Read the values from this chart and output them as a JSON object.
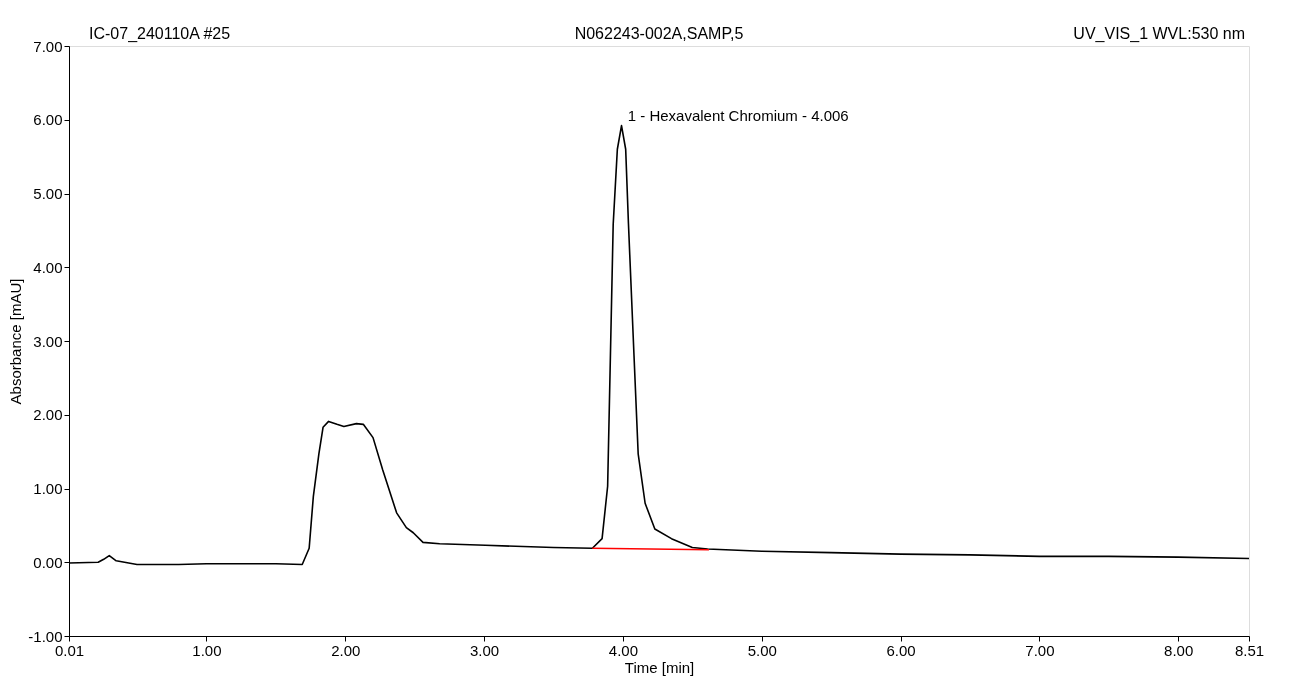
{
  "chart_data": {
    "type": "line",
    "title": "IC-07_240110A #25",
    "subtitle": "N062243-002A,SAMP,5",
    "xlabel": "Time [min]",
    "ylabel": "Absorbance [mAU]",
    "annotations": [
      "UV_VIS_1 WVL:530 nm",
      {
        "text": "1 - Hexavalent Chromium - 4.006",
        "x": 4.006,
        "y": 5.92
      }
    ],
    "series": [
      {
        "color": "#000000",
        "x": [
          0.01,
          0.22,
          0.26,
          0.3,
          0.35,
          0.5,
          0.8,
          1.0,
          1.3,
          1.5,
          1.69,
          1.74,
          1.77,
          1.81,
          1.84,
          1.88,
          1.94,
          1.99,
          2.08,
          2.13,
          2.2,
          2.27,
          2.37,
          2.44,
          2.49,
          2.56,
          2.68,
          3.01,
          3.5,
          3.78,
          3.85,
          3.89,
          3.91,
          3.93,
          3.96,
          3.99,
          4.02,
          4.04,
          4.08,
          4.11,
          4.16,
          4.23,
          4.35,
          4.5,
          4.61,
          5.0,
          5.5,
          6.0,
          6.5,
          7.0,
          7.5,
          8.0,
          8.51
        ],
        "values": [
          -0.01,
          0.0,
          0.04,
          0.09,
          0.02,
          -0.03,
          -0.03,
          -0.02,
          -0.02,
          -0.02,
          -0.03,
          0.19,
          0.89,
          1.47,
          1.83,
          1.91,
          1.87,
          1.84,
          1.88,
          1.87,
          1.69,
          1.25,
          0.67,
          0.47,
          0.4,
          0.27,
          0.25,
          0.23,
          0.2,
          0.19,
          0.32,
          1.03,
          2.8,
          4.58,
          5.6,
          5.92,
          5.6,
          4.59,
          2.8,
          1.47,
          0.8,
          0.45,
          0.32,
          0.2,
          0.18,
          0.15,
          0.13,
          0.11,
          0.1,
          0.08,
          0.08,
          0.07,
          0.05
        ]
      },
      {
        "color": "#ff0000",
        "x": [
          3.78,
          4.62
        ],
        "values": [
          0.19,
          0.17
        ]
      }
    ],
    "xlim": [
      0.01,
      8.51
    ],
    "ylim": [
      -1,
      7
    ],
    "xticks": [
      0.01,
      {
        "value": 1,
        "label": "1.00"
      },
      {
        "value": 2,
        "label": "2.00"
      },
      {
        "value": 3,
        "label": "3.00"
      },
      {
        "value": 4,
        "label": "4.00"
      },
      {
        "value": 5,
        "label": "5.00"
      },
      {
        "value": 6,
        "label": "6.00"
      },
      {
        "value": 7,
        "label": "7.00"
      },
      {
        "value": 8,
        "label": "8.00"
      },
      8.51
    ],
    "yticks": [
      {
        "value": -1,
        "label": "-1.00"
      },
      {
        "value": 0,
        "label": "0.00"
      },
      {
        "value": 1,
        "label": "1.00"
      },
      {
        "value": 2,
        "label": "2.00"
      },
      {
        "value": 3,
        "label": "3.00"
      },
      {
        "value": 4,
        "label": "4.00"
      },
      {
        "value": 5,
        "label": "5.00"
      },
      {
        "value": 6,
        "label": "6.00"
      },
      {
        "value": 7,
        "label": "7.00"
      }
    ],
    "grid": false,
    "legend": false,
    "line_style": "solid"
  }
}
